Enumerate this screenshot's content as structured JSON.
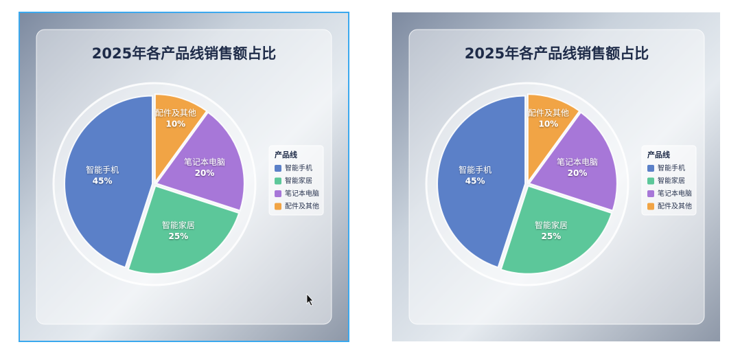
{
  "chart_data": [
    {
      "type": "pie",
      "title": "2025年各产品线销售额占比",
      "legend_title": "产品线",
      "categories": [
        "智能手机",
        "智能家居",
        "笔记本电脑",
        "配件及其他"
      ],
      "values": [
        45,
        25,
        20,
        10
      ],
      "value_labels": [
        "45%",
        "25%",
        "20%",
        "10%"
      ],
      "colors": [
        "#5b80c8",
        "#5cc79a",
        "#a777d8",
        "#f1a445"
      ],
      "legend": "right"
    },
    {
      "type": "pie",
      "title": "2025年各产品线销售额占比",
      "legend_title": "产品线",
      "categories": [
        "智能手机",
        "智能家居",
        "笔记本电脑",
        "配件及其他"
      ],
      "values": [
        45,
        25,
        20,
        10
      ],
      "value_labels": [
        "45%",
        "25%",
        "20%",
        "10%"
      ],
      "colors": [
        "#5b80c8",
        "#5cc79a",
        "#a777d8",
        "#f1a445"
      ],
      "legend": "right"
    }
  ]
}
